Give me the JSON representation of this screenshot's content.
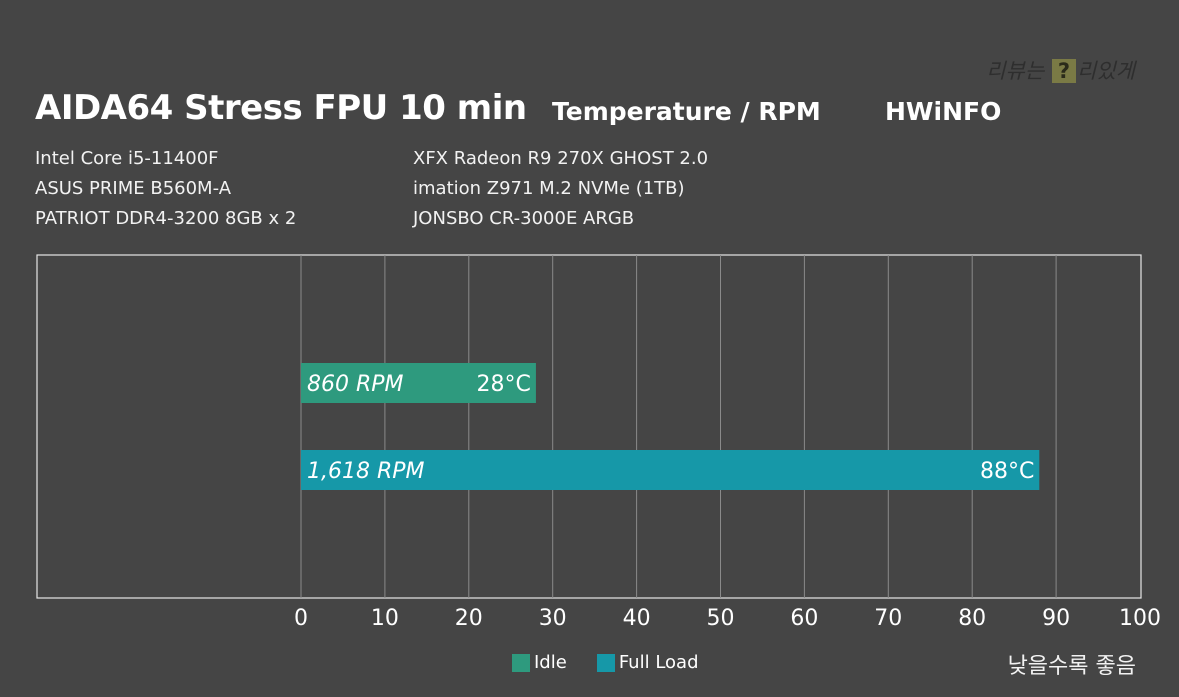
{
  "header": {
    "title": "AIDA64 Stress FPU 10 min",
    "subtitle": "Temperature / RPM",
    "source": "HWiNFO"
  },
  "specs": {
    "left": [
      "Intel Core i5-11400F",
      "ASUS PRIME B560M-A",
      "PATRIOT DDR4-3200 8GB x 2"
    ],
    "right": [
      "XFX Radeon R9 270X GHOST 2.0",
      "imation Z971 M.2 NVMe (1TB)",
      "JONSBO CR-3000E ARGB"
    ]
  },
  "watermark": {
    "before": "리뷰는 ",
    "mark": "?",
    "after": "리있게"
  },
  "note": "낮을수록 좋음",
  "colors": {
    "idle": "#2e9a7e",
    "full_load": "#1698a8",
    "background": "#454545"
  },
  "chart_data": {
    "type": "bar",
    "orientation": "horizontal",
    "xlim": [
      0,
      100
    ],
    "xticks": [
      0,
      10,
      20,
      30,
      40,
      50,
      60,
      70,
      80,
      90,
      100
    ],
    "grid": true,
    "legend_position": "bottom",
    "series": [
      {
        "name": "Idle",
        "value": 28,
        "value_label": "28°C",
        "rpm_label": "860 RPM",
        "color": "#2e9a7e"
      },
      {
        "name": "Full Load",
        "value": 88,
        "value_label": "88°C",
        "rpm_label": "1,618 RPM",
        "color": "#1698a8"
      }
    ]
  }
}
